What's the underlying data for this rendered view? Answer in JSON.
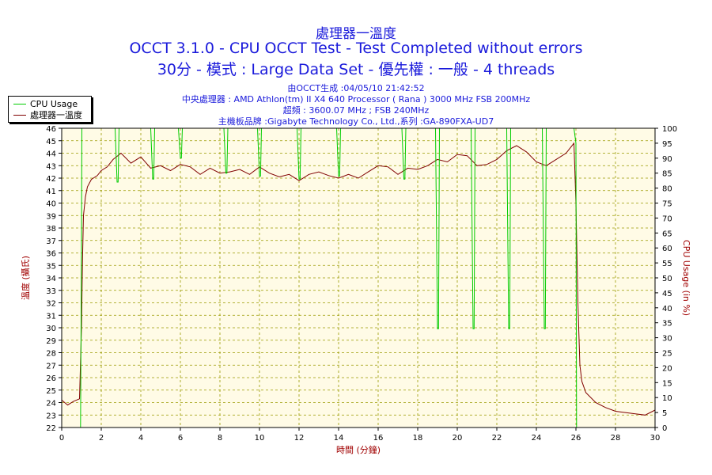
{
  "header": {
    "title_cn": "處理器一溫度",
    "title_main": "OCCT 3.1.0 - CPU OCCT Test - Test Completed without errors",
    "title_mode": "30分 - 模式 : Large Data Set - 優先權 : 一般 - 4 threads",
    "info": [
      "由OCCT生成 :04/05/10 21:42:52",
      "中央處理器 : AMD Athlon(tm) II X4 640 Processor ( Rana ) 3000 MHz FSB 200MHz",
      "超頻 : 3600.07 MHz ; FSB 240MHz",
      "主機板品牌 :Gigabyte Technology Co., Ltd.,系列 :GA-890FXA-UD7"
    ]
  },
  "legend": {
    "items": [
      {
        "label": "CPU Usage",
        "color": "#00cc00"
      },
      {
        "label": "處理器一溫度",
        "color": "#800000"
      }
    ]
  },
  "colors": {
    "title": "#1a1adb",
    "plot_bg": "#fffbe6",
    "grid": "#9a9a00",
    "temp": "#800000",
    "usage": "#00cc00",
    "axis_label": "#a00000"
  },
  "chart_data": {
    "type": "line",
    "xlabel": "時間 (分鐘)",
    "ylabel_left": "溫度 (攝氏)",
    "ylabel_right": "CPU Usage (in %)",
    "xlim": [
      0,
      30
    ],
    "ylim_left": [
      22,
      46
    ],
    "ylim_right": [
      0,
      100
    ],
    "x_ticks": [
      0,
      2,
      4,
      6,
      8,
      10,
      12,
      14,
      16,
      18,
      20,
      22,
      24,
      26,
      28,
      30
    ],
    "y_left_ticks": [
      22,
      23,
      24,
      25,
      26,
      27,
      28,
      29,
      30,
      31,
      32,
      33,
      34,
      35,
      36,
      37,
      38,
      39,
      40,
      41,
      42,
      43,
      44,
      45,
      46
    ],
    "y_right_ticks": [
      0,
      5,
      10,
      15,
      20,
      25,
      30,
      35,
      40,
      45,
      50,
      55,
      60,
      65,
      70,
      75,
      80,
      85,
      90,
      95,
      100
    ],
    "grid": true,
    "legend_position": "top-left",
    "series": [
      {
        "name": "處理器一溫度",
        "axis": "left",
        "x": [
          0,
          0.3,
          0.6,
          0.9,
          1.0,
          1.05,
          1.1,
          1.2,
          1.3,
          1.5,
          1.8,
          2.0,
          2.3,
          2.6,
          3.0,
          3.5,
          4.0,
          4.5,
          5.0,
          5.5,
          6.0,
          6.5,
          7.0,
          7.5,
          8.0,
          8.5,
          9.0,
          9.5,
          10.0,
          10.5,
          11.0,
          11.5,
          12.0,
          12.5,
          13.0,
          13.5,
          14.0,
          14.5,
          15.0,
          15.5,
          16.0,
          16.5,
          17.0,
          17.5,
          18.0,
          18.5,
          19.0,
          19.5,
          20.0,
          20.5,
          21.0,
          21.5,
          22.0,
          22.5,
          23.0,
          23.5,
          24.0,
          24.5,
          25.0,
          25.5,
          25.9,
          26.0,
          26.1,
          26.2,
          26.3,
          26.5,
          27.0,
          27.5,
          28.0,
          28.5,
          29.0,
          29.5,
          30.0
        ],
        "values": [
          24.2,
          23.8,
          24.1,
          24.3,
          30,
          35.5,
          39,
          40.5,
          41.3,
          41.9,
          42.2,
          42.6,
          42.9,
          43.5,
          44.0,
          43.2,
          43.7,
          42.8,
          43.0,
          42.6,
          43.1,
          42.9,
          42.3,
          42.8,
          42.4,
          42.5,
          42.7,
          42.3,
          42.9,
          42.4,
          42.1,
          42.3,
          41.8,
          42.3,
          42.5,
          42.2,
          42.0,
          42.3,
          42.0,
          42.5,
          43.0,
          42.9,
          42.3,
          42.8,
          42.7,
          43.0,
          43.5,
          43.3,
          43.9,
          43.8,
          43.0,
          43.1,
          43.5,
          44.2,
          44.6,
          44.1,
          43.3,
          43.0,
          43.5,
          44.0,
          44.8,
          40,
          32,
          27,
          25.7,
          24.8,
          24.0,
          23.6,
          23.3,
          23.2,
          23.1,
          23.0,
          23.4
        ]
      },
      {
        "name": "CPU Usage",
        "axis": "right",
        "x": [
          0,
          0.95,
          1.0,
          1.02,
          1.1,
          1.2,
          2.7,
          2.8,
          2.85,
          2.9,
          4.5,
          4.6,
          4.65,
          4.7,
          5.9,
          6.0,
          6.05,
          6.1,
          8.2,
          8.3,
          8.35,
          8.4,
          9.9,
          10.0,
          10.05,
          10.1,
          11.9,
          12.0,
          12.05,
          12.1,
          13.9,
          14.0,
          14.05,
          14.1,
          17.2,
          17.3,
          17.35,
          17.4,
          18.9,
          19.0,
          19.05,
          19.1,
          20.7,
          20.8,
          20.85,
          20.9,
          22.5,
          22.6,
          22.65,
          22.7,
          24.3,
          24.4,
          24.45,
          24.5,
          25.9,
          26.0,
          26.03,
          26.1,
          30
        ],
        "values": [
          0,
          0,
          60,
          100,
          100,
          100,
          100,
          82,
          82,
          100,
          100,
          83,
          83,
          100,
          100,
          90,
          90,
          100,
          100,
          85,
          85,
          100,
          100,
          84,
          84,
          100,
          100,
          83,
          83,
          100,
          100,
          84,
          84,
          100,
          100,
          83,
          83,
          100,
          100,
          33,
          33,
          100,
          100,
          33,
          33,
          100,
          100,
          33,
          33,
          100,
          100,
          33,
          33,
          100,
          100,
          95,
          0,
          0,
          0
        ]
      }
    ]
  }
}
